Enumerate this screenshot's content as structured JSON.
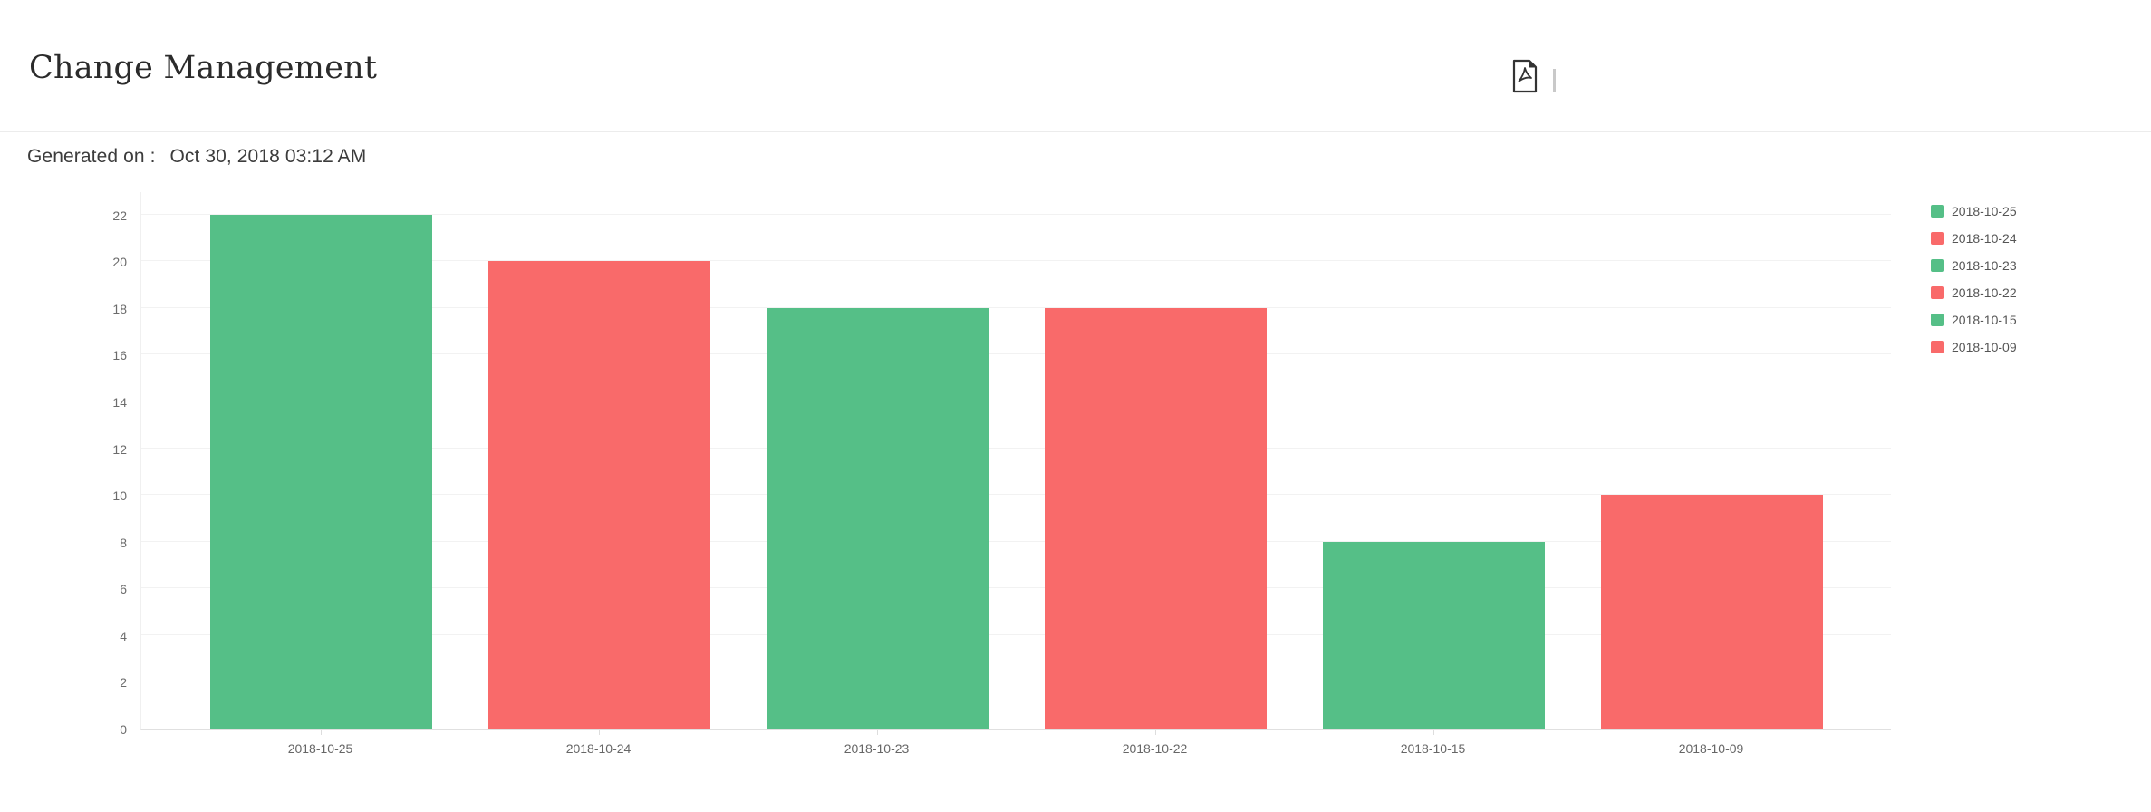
{
  "header": {
    "title": "Change Management",
    "export_pdf_tooltip": "Export as PDF"
  },
  "meta": {
    "generated_label": "Generated on :",
    "generated_value": "Oct 30, 2018 03:12 AM"
  },
  "icons": {
    "export_pdf": "pdf-file-icon"
  },
  "colors": {
    "bar_green": "#55bf87",
    "bar_red": "#f96a6a",
    "gridline": "#f2f2f2",
    "axis_text": "#666666",
    "legend_text": "#555555"
  },
  "chart_data": {
    "type": "bar",
    "title": "",
    "xlabel": "",
    "ylabel": "",
    "categories": [
      "2018-10-25",
      "2018-10-24",
      "2018-10-23",
      "2018-10-22",
      "2018-10-15",
      "2018-10-09"
    ],
    "values": [
      22,
      20,
      18,
      18,
      8,
      10
    ],
    "bar_colors": [
      "#55bf87",
      "#f96a6a",
      "#55bf87",
      "#f96a6a",
      "#55bf87",
      "#f96a6a"
    ],
    "y_ticks": [
      0,
      2,
      4,
      6,
      8,
      10,
      12,
      14,
      16,
      18,
      20,
      22
    ],
    "ylim": [
      0,
      23
    ],
    "grid": true,
    "legend_position": "right",
    "legend": [
      {
        "label": "2018-10-25",
        "color": "#55bf87"
      },
      {
        "label": "2018-10-24",
        "color": "#f96a6a"
      },
      {
        "label": "2018-10-23",
        "color": "#55bf87"
      },
      {
        "label": "2018-10-22",
        "color": "#f96a6a"
      },
      {
        "label": "2018-10-15",
        "color": "#55bf87"
      },
      {
        "label": "2018-10-09",
        "color": "#f96a6a"
      }
    ]
  }
}
